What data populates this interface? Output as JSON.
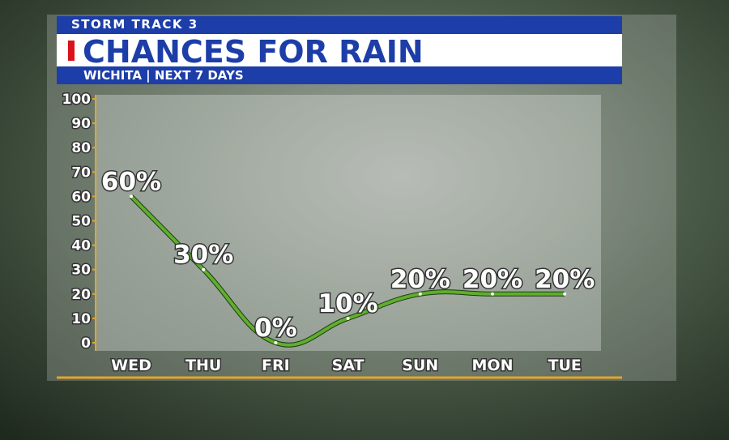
{
  "header": "STORM TRACK 3",
  "chart_data": {
    "type": "line",
    "title": "CHANCES FOR RAIN",
    "subtitle": "WICHITA | NEXT 7 DAYS",
    "categories": [
      "WED",
      "THU",
      "FRI",
      "SAT",
      "SUN",
      "MON",
      "TUE"
    ],
    "values": [
      60,
      30,
      0,
      10,
      20,
      20,
      20
    ],
    "value_labels": [
      "60%",
      "30%",
      "0%",
      "10%",
      "20%",
      "20%",
      "20%"
    ],
    "color": "#5fae2e",
    "ylim": [
      0,
      100
    ],
    "yticks": [
      0,
      10,
      20,
      30,
      40,
      50,
      60,
      70,
      80,
      90,
      100
    ]
  }
}
